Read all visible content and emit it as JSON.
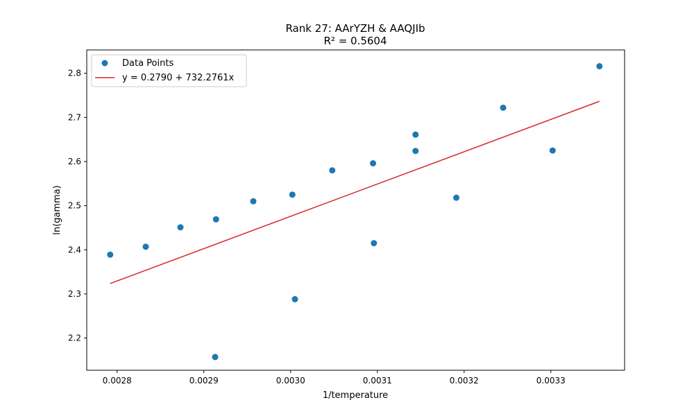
{
  "chart_data": {
    "type": "scatter",
    "title": "Rank 27: AArYZH & AAQJIb",
    "subtitle": "R² = 0.5604",
    "xlabel": "1/temperature",
    "ylabel": "ln(gamma)",
    "xlim": [
      0.002765,
      0.003385
    ],
    "ylim": [
      2.127,
      2.853
    ],
    "x_ticks": [
      0.0028,
      0.0029,
      0.003,
      0.0031,
      0.0032,
      0.0033
    ],
    "x_tick_labels": [
      "0.0028",
      "0.0029",
      "0.0030",
      "0.0031",
      "0.0032",
      "0.0033"
    ],
    "y_ticks": [
      2.2,
      2.3,
      2.4,
      2.5,
      2.6,
      2.7,
      2.8
    ],
    "y_tick_labels": [
      "2.2",
      "2.3",
      "2.4",
      "2.5",
      "2.6",
      "2.7",
      "2.8"
    ],
    "grid": false,
    "legend_position": "top-left",
    "series": [
      {
        "name": "Data Points",
        "kind": "scatter",
        "color": "#1f77b4",
        "points": [
          {
            "x": 0.002792,
            "y": 2.389
          },
          {
            "x": 0.002833,
            "y": 2.407
          },
          {
            "x": 0.002873,
            "y": 2.451
          },
          {
            "x": 0.002914,
            "y": 2.469
          },
          {
            "x": 0.002913,
            "y": 2.157
          },
          {
            "x": 0.002957,
            "y": 2.51
          },
          {
            "x": 0.003002,
            "y": 2.525
          },
          {
            "x": 0.003005,
            "y": 2.288
          },
          {
            "x": 0.003048,
            "y": 2.58
          },
          {
            "x": 0.003095,
            "y": 2.596
          },
          {
            "x": 0.003096,
            "y": 2.415
          },
          {
            "x": 0.003144,
            "y": 2.661
          },
          {
            "x": 0.003144,
            "y": 2.624
          },
          {
            "x": 0.003191,
            "y": 2.518
          },
          {
            "x": 0.003245,
            "y": 2.722
          },
          {
            "x": 0.003302,
            "y": 2.625
          },
          {
            "x": 0.003356,
            "y": 2.816
          }
        ]
      },
      {
        "name": "y = 0.2790 + 732.2761x",
        "kind": "line",
        "color": "#d62728",
        "intercept": 0.279,
        "slope": 732.2761,
        "x_range": [
          0.002792,
          0.003356
        ]
      }
    ]
  }
}
